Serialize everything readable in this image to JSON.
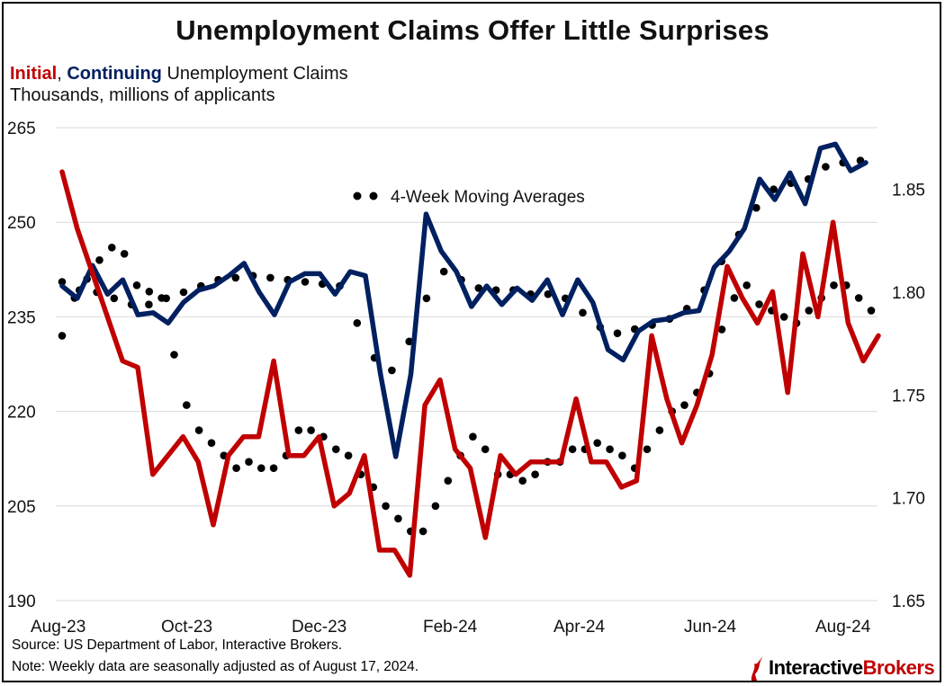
{
  "title": "Unemployment Claims Offer Little Surprises",
  "subtitle": {
    "initial_label": "Initial",
    "separator": ", ",
    "continuing_label": "Continuing",
    "rest": " Unemployment Claims"
  },
  "units_label": "Thousands, millions of applicants",
  "footer": {
    "source": "Source: US Department of Labor, Interactive Brokers.",
    "note": "Note: Weekly data are seasonally adjusted as of August 17, 2024."
  },
  "logo": {
    "part1": "Interactive",
    "part2": "Brokers"
  },
  "colors": {
    "initial": "#c00000",
    "continuing": "#002060",
    "moving_average": "#000000",
    "grid": "#d9d9d9"
  },
  "chart_data": {
    "type": "line",
    "legend": {
      "label": "4-Week Moving Averages",
      "placement": "top-center"
    },
    "x_ticks": [
      "Aug-23",
      "Oct-23",
      "Dec-23",
      "Feb-24",
      "Apr-24",
      "Jun-24",
      "Aug-24"
    ],
    "y_left": {
      "ticks": [
        "265",
        "250",
        "235",
        "220",
        "205",
        "190"
      ],
      "range": [
        190,
        265
      ]
    },
    "y_right": {
      "ticks": [
        "1.85",
        "1.80",
        "1.75",
        "1.70",
        "1.65"
      ],
      "range": [
        1.65,
        1.88
      ]
    },
    "grid": true,
    "series": [
      {
        "name": "Initial",
        "axis": "left",
        "values": [
          258,
          249,
          242,
          235,
          228,
          227,
          210,
          213,
          216,
          212,
          202,
          213,
          216,
          216,
          228,
          213,
          213,
          216,
          205,
          207,
          213,
          198,
          198,
          194,
          221,
          225,
          214,
          211,
          200,
          213,
          210,
          212,
          212,
          212,
          222,
          212,
          212,
          208,
          209,
          232,
          222,
          215,
          221,
          229,
          243,
          238,
          234,
          239,
          223,
          245,
          235,
          250,
          234,
          228,
          232
        ]
      },
      {
        "name": "Continuing",
        "axis": "right",
        "values": [
          1.803,
          1.797,
          1.813,
          1.799,
          1.806,
          1.789,
          1.79,
          1.785,
          1.795,
          1.801,
          1.803,
          1.808,
          1.814,
          1.8,
          1.789,
          1.805,
          1.809,
          1.809,
          1.799,
          1.81,
          1.808,
          1.76,
          1.72,
          1.76,
          1.838,
          1.82,
          1.81,
          1.793,
          1.803,
          1.794,
          1.802,
          1.796,
          1.806,
          1.789,
          1.806,
          1.795,
          1.772,
          1.767,
          1.781,
          1.786,
          1.787,
          1.79,
          1.791,
          1.812,
          1.82,
          1.831,
          1.855,
          1.845,
          1.858,
          1.843,
          1.87,
          1.872,
          1.859,
          1.863
        ]
      },
      {
        "name": "Initial 4-week moving average",
        "axis": "left",
        "values": [
          232,
          238,
          241,
          244,
          246,
          245,
          240,
          239,
          238,
          229,
          221,
          217,
          215,
          213,
          211,
          212,
          211,
          211,
          213,
          217,
          217,
          216,
          214,
          213,
          210,
          208,
          205,
          203,
          201,
          201,
          205,
          209,
          213,
          216,
          214,
          210,
          210,
          209,
          210,
          212,
          212,
          214,
          214,
          215,
          214,
          213,
          211,
          214,
          217,
          220,
          221,
          223,
          226,
          233,
          238,
          240,
          237,
          236,
          235,
          234,
          236,
          238,
          240,
          240,
          238,
          236
        ]
      },
      {
        "name": "Continuing 4-week moving average",
        "axis": "right",
        "values": [
          1.805,
          1.801,
          1.8,
          1.797,
          1.794,
          1.794,
          1.797,
          1.8,
          1.803,
          1.806,
          1.807,
          1.808,
          1.807,
          1.806,
          1.805,
          1.804,
          1.803,
          1.785,
          1.768,
          1.762,
          1.776,
          1.797,
          1.81,
          1.806,
          1.802,
          1.801,
          1.801,
          1.799,
          1.799,
          1.797,
          1.79,
          1.783,
          1.78,
          1.782,
          1.784,
          1.787,
          1.792,
          1.801,
          1.815,
          1.828,
          1.841,
          1.85,
          1.853,
          1.855,
          1.861,
          1.863,
          1.864
        ]
      }
    ]
  }
}
